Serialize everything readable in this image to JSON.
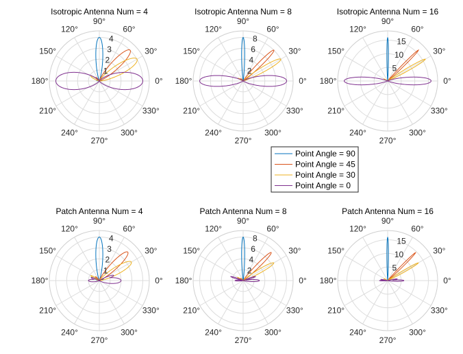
{
  "chart_data": [
    {
      "type": "polar-line",
      "title": "Isotropic Antenna Num = 4",
      "rticks": [
        1,
        2,
        3,
        4
      ],
      "rlim": [
        0,
        4.6
      ],
      "theta_ticks": [
        "0°",
        "30°",
        "60°",
        "90°",
        "120°",
        "150°",
        "180°",
        "210°",
        "240°",
        "270°",
        "300°",
        "330°"
      ],
      "series": [
        {
          "name": "Point Angle = 90",
          "peak_deg": 90,
          "peak_gain": 4,
          "lobes": [
            {
              "deg": 90,
              "gain": 4,
              "width": 18
            },
            {
              "deg": 10,
              "gain": 0.25,
              "width": 12
            },
            {
              "deg": 170,
              "gain": 0.25,
              "width": 12
            }
          ]
        },
        {
          "name": "Point Angle = 45",
          "peak_deg": 45,
          "peak_gain": 4,
          "lobes": [
            {
              "deg": 45,
              "gain": 4,
              "width": 22
            },
            {
              "deg": 135,
              "gain": 0.45,
              "width": 20
            }
          ]
        },
        {
          "name": "Point Angle = 30",
          "peak_deg": 30,
          "peak_gain": 4,
          "lobes": [
            {
              "deg": 30,
              "gain": 4,
              "width": 26
            },
            {
              "deg": 150,
              "gain": 0.9,
              "width": 18
            }
          ]
        },
        {
          "name": "Point Angle = 0",
          "peak_deg": 0,
          "peak_gain": 4,
          "lobes": [
            {
              "deg": 0,
              "gain": 4,
              "width": 45
            },
            {
              "deg": 180,
              "gain": 4,
              "width": 45
            }
          ]
        }
      ]
    },
    {
      "type": "polar-line",
      "title": "Isotropic Antenna Num = 8",
      "rticks": [
        2,
        4,
        6,
        8
      ],
      "rlim": [
        0,
        9.2
      ],
      "theta_ticks": [
        "0°",
        "30°",
        "60°",
        "90°",
        "120°",
        "150°",
        "180°",
        "210°",
        "240°",
        "270°",
        "300°",
        "330°"
      ],
      "series": [
        {
          "name": "Point Angle = 90",
          "peak_deg": 90,
          "peak_gain": 8,
          "lobes": [
            {
              "deg": 90,
              "gain": 8,
              "width": 8
            }
          ]
        },
        {
          "name": "Point Angle = 45",
          "peak_deg": 45,
          "peak_gain": 8,
          "lobes": [
            {
              "deg": 45,
              "gain": 8,
              "width": 10
            },
            {
              "deg": 135,
              "gain": 0.6,
              "width": 10
            }
          ]
        },
        {
          "name": "Point Angle = 30",
          "peak_deg": 30,
          "peak_gain": 8,
          "lobes": [
            {
              "deg": 30,
              "gain": 8,
              "width": 13
            },
            {
              "deg": 150,
              "gain": 1.0,
              "width": 10
            }
          ]
        },
        {
          "name": "Point Angle = 0",
          "peak_deg": 0,
          "peak_gain": 8,
          "lobes": [
            {
              "deg": 0,
              "gain": 8,
              "width": 28
            },
            {
              "deg": 180,
              "gain": 8,
              "width": 28
            }
          ]
        }
      ]
    },
    {
      "type": "polar-line",
      "title": "Isotropic Antenna Num = 16",
      "rticks": [
        5,
        10,
        15
      ],
      "rlim": [
        0,
        18.4
      ],
      "theta_ticks": [
        "0°",
        "30°",
        "60°",
        "90°",
        "120°",
        "150°",
        "180°",
        "210°",
        "240°",
        "270°",
        "300°",
        "330°"
      ],
      "series": [
        {
          "name": "Point Angle = 90",
          "peak_deg": 90,
          "peak_gain": 16,
          "lobes": [
            {
              "deg": 90,
              "gain": 16,
              "width": 4
            }
          ]
        },
        {
          "name": "Point Angle = 45",
          "peak_deg": 45,
          "peak_gain": 16,
          "lobes": [
            {
              "deg": 45,
              "gain": 16,
              "width": 5
            }
          ]
        },
        {
          "name": "Point Angle = 30",
          "peak_deg": 30,
          "peak_gain": 16,
          "lobes": [
            {
              "deg": 30,
              "gain": 16,
              "width": 7
            },
            {
              "deg": 150,
              "gain": 1.5,
              "width": 6
            }
          ]
        },
        {
          "name": "Point Angle = 0",
          "peak_deg": 0,
          "peak_gain": 16,
          "lobes": [
            {
              "deg": 0,
              "gain": 16,
              "width": 20
            },
            {
              "deg": 180,
              "gain": 16,
              "width": 20
            }
          ]
        }
      ]
    },
    {
      "type": "polar-line",
      "title": "Patch Antenna Num = 4",
      "rticks": [
        1,
        2,
        3,
        4
      ],
      "rlim": [
        0,
        4.6
      ],
      "theta_ticks": [
        "0°",
        "30°",
        "60°",
        "90°",
        "120°",
        "150°",
        "180°",
        "210°",
        "240°",
        "270°",
        "300°",
        "330°"
      ],
      "series": [
        {
          "name": "Point Angle = 90",
          "peak_deg": 90,
          "peak_gain": 4,
          "lobes": [
            {
              "deg": 90,
              "gain": 4,
              "width": 18
            },
            {
              "deg": 20,
              "gain": 0.4,
              "width": 12
            },
            {
              "deg": 160,
              "gain": 0.4,
              "width": 12
            }
          ]
        },
        {
          "name": "Point Angle = 45",
          "peak_deg": 45,
          "peak_gain": 3.7,
          "lobes": [
            {
              "deg": 45,
              "gain": 3.7,
              "width": 20
            },
            {
              "deg": 135,
              "gain": 0.5,
              "width": 15
            }
          ]
        },
        {
          "name": "Point Angle = 30",
          "peak_deg": 30,
          "peak_gain": 3.4,
          "lobes": [
            {
              "deg": 30,
              "gain": 3.4,
              "width": 22
            },
            {
              "deg": 150,
              "gain": 0.9,
              "width": 15
            }
          ]
        },
        {
          "name": "Point Angle = 0",
          "peak_deg": 0,
          "peak_gain": 2.0,
          "lobes": [
            {
              "deg": 0,
              "gain": 2.0,
              "width": 30
            },
            {
              "deg": 180,
              "gain": 1.0,
              "width": 25
            },
            {
              "deg": 160,
              "gain": 0.8,
              "width": 15
            },
            {
              "deg": 20,
              "gain": 1.4,
              "width": 15
            }
          ]
        }
      ]
    },
    {
      "type": "polar-line",
      "title": "Patch Antenna Num = 8",
      "rticks": [
        2,
        4,
        6,
        8
      ],
      "rlim": [
        0,
        9.2
      ],
      "theta_ticks": [
        "0°",
        "30°",
        "60°",
        "90°",
        "120°",
        "150°",
        "180°",
        "210°",
        "240°",
        "270°",
        "300°",
        "330°"
      ],
      "series": [
        {
          "name": "Point Angle = 90",
          "peak_deg": 90,
          "peak_gain": 8,
          "lobes": [
            {
              "deg": 90,
              "gain": 8,
              "width": 8
            }
          ]
        },
        {
          "name": "Point Angle = 45",
          "peak_deg": 45,
          "peak_gain": 7.3,
          "lobes": [
            {
              "deg": 45,
              "gain": 7.3,
              "width": 10
            },
            {
              "deg": 135,
              "gain": 0.6,
              "width": 10
            }
          ]
        },
        {
          "name": "Point Angle = 30",
          "peak_deg": 30,
          "peak_gain": 6.5,
          "lobes": [
            {
              "deg": 30,
              "gain": 6.5,
              "width": 12
            },
            {
              "deg": 150,
              "gain": 1.2,
              "width": 10
            }
          ]
        },
        {
          "name": "Point Angle = 0",
          "peak_deg": 0,
          "peak_gain": 3.0,
          "lobes": [
            {
              "deg": 0,
              "gain": 3.0,
              "width": 14
            },
            {
              "deg": 18,
              "gain": 2.4,
              "width": 8
            },
            {
              "deg": 162,
              "gain": 2.4,
              "width": 8
            },
            {
              "deg": 180,
              "gain": 1.5,
              "width": 12
            }
          ]
        }
      ]
    },
    {
      "type": "polar-line",
      "title": "Patch Antenna Num = 16",
      "rticks": [
        5,
        10,
        15
      ],
      "rlim": [
        0,
        18.4
      ],
      "theta_ticks": [
        "0°",
        "30°",
        "60°",
        "90°",
        "120°",
        "150°",
        "180°",
        "210°",
        "240°",
        "270°",
        "300°",
        "330°"
      ],
      "series": [
        {
          "name": "Point Angle = 90",
          "peak_deg": 90,
          "peak_gain": 16,
          "lobes": [
            {
              "deg": 90,
              "gain": 16,
              "width": 4
            }
          ]
        },
        {
          "name": "Point Angle = 45",
          "peak_deg": 45,
          "peak_gain": 14.5,
          "lobes": [
            {
              "deg": 45,
              "gain": 14.5,
              "width": 5
            }
          ]
        },
        {
          "name": "Point Angle = 30",
          "peak_deg": 30,
          "peak_gain": 13,
          "lobes": [
            {
              "deg": 30,
              "gain": 13,
              "width": 6
            },
            {
              "deg": 150,
              "gain": 1.5,
              "width": 5
            }
          ]
        },
        {
          "name": "Point Angle = 0",
          "peak_deg": 0,
          "peak_gain": 6,
          "lobes": [
            {
              "deg": 0,
              "gain": 6,
              "width": 10
            },
            {
              "deg": 180,
              "gain": 3.0,
              "width": 8
            },
            {
              "deg": 10,
              "gain": 3.5,
              "width": 6
            },
            {
              "deg": 170,
              "gain": 2.5,
              "width": 6
            }
          ]
        }
      ]
    }
  ],
  "legend": {
    "placement": "center",
    "entries": [
      "Point Angle = 90",
      "Point Angle = 45",
      "Point Angle = 30",
      "Point Angle = 0"
    ]
  },
  "colors": {
    "Point Angle = 90": "#0072BD",
    "Point Angle = 45": "#D95319",
    "Point Angle = 30": "#EDB120",
    "Point Angle = 0": "#7E2F8E",
    "grid": "#dcdcdc"
  }
}
